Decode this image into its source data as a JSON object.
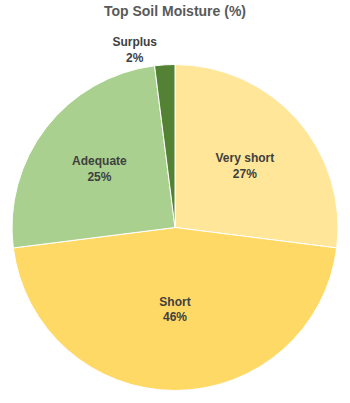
{
  "chart_data": {
    "type": "pie",
    "title": "Top Soil Moisture (%)",
    "categories": [
      "Very short",
      "Short",
      "Adequate",
      "Surplus"
    ],
    "values": [
      27,
      46,
      25,
      2
    ],
    "value_labels": [
      "27%",
      "46%",
      "25%",
      "2%"
    ],
    "colors": [
      "#FFE699",
      "#FFD966",
      "#A9D08E",
      "#548235"
    ],
    "data_labels": true
  }
}
